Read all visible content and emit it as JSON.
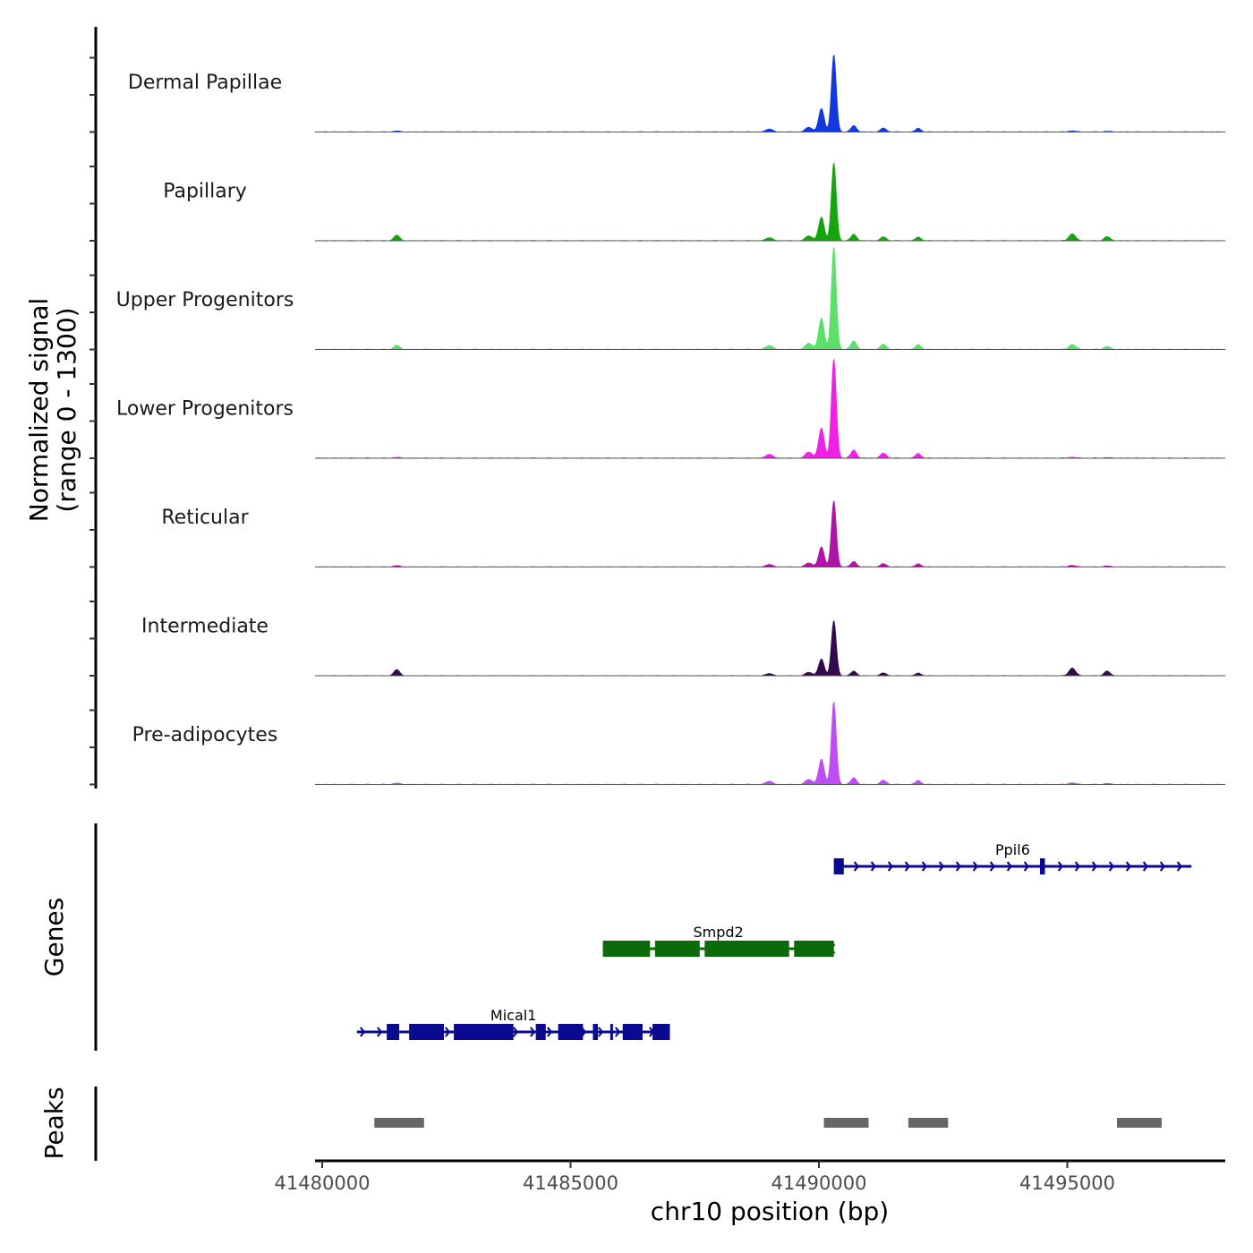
{
  "chart_data": {
    "type": "area",
    "title": "",
    "chromosome": "chr10",
    "xlabel": "chr10 position (bp)",
    "ylabel_line1": "Normalized signal",
    "ylabel_line2": "(range 0 - 1300)",
    "xlim": [
      41480000,
      41498000
    ],
    "ylim": [
      0,
      1300
    ],
    "x_ticks": [
      41480000,
      41485000,
      41490000,
      41495000
    ],
    "x_tick_labels": [
      "41480000",
      "41485000",
      "41490000",
      "41495000"
    ],
    "peak_components": [
      {
        "center": 41490300,
        "width": 70,
        "height": 1
      },
      {
        "center": 41490050,
        "width": 80,
        "height": 0.3
      },
      {
        "center": 41489800,
        "width": 100,
        "height": 0.06
      },
      {
        "center": 41490700,
        "width": 80,
        "height": 0.08
      },
      {
        "center": 41489000,
        "width": 90,
        "height": 0.04
      },
      {
        "center": 41491300,
        "width": 80,
        "height": 0.05
      },
      {
        "center": 41492000,
        "width": 70,
        "height": 0.05
      },
      {
        "center": 41481500,
        "width": 80,
        "height": 0.04
      },
      {
        "center": 41495100,
        "width": 90,
        "height": 0.05
      },
      {
        "center": 41495800,
        "width": 80,
        "height": 0.03
      }
    ],
    "series": [
      {
        "name": "Dermal Papillae",
        "color": "#1239E0",
        "max_signal": 980,
        "secondary_scale": 0.15
      },
      {
        "name": "Papillary",
        "color": "#16A50F",
        "max_signal": 990,
        "secondary_scale": 0.9
      },
      {
        "name": "Upper Progenitors",
        "color": "#5BE06A",
        "max_signal": 1300,
        "secondary_scale": 0.5
      },
      {
        "name": "Lower Progenitors",
        "color": "#F020E6",
        "max_signal": 1260,
        "secondary_scale": 0.1
      },
      {
        "name": "Reticular",
        "color": "#AE15A6",
        "max_signal": 840,
        "secondary_scale": 0.25
      },
      {
        "name": "Intermediate",
        "color": "#33094F",
        "max_signal": 700,
        "secondary_scale": 1.4
      },
      {
        "name": "Pre-adipocytes",
        "color": "#BE4DF5",
        "max_signal": 1050,
        "secondary_scale": 0.2
      }
    ],
    "genes": [
      {
        "name": "Ppil6",
        "start": 41490300,
        "end": 41497500,
        "strand": "+",
        "color": "#0A0A90",
        "exons": [
          [
            41490300,
            41490500
          ],
          [
            41494450,
            41494550
          ]
        ]
      },
      {
        "name": "Smpd2",
        "start": 41485650,
        "end": 41490300,
        "strand": "-",
        "color": "#0B6B0B",
        "exons": [
          [
            41485650,
            41486600
          ],
          [
            41486700,
            41487600
          ],
          [
            41487700,
            41489400
          ],
          [
            41489500,
            41490300
          ]
        ]
      },
      {
        "name": "Mical1",
        "start": 41480700,
        "end": 41487000,
        "strand": "+",
        "color": "#0A0A90",
        "exons": [
          [
            41481300,
            41481550
          ],
          [
            41481750,
            41482450
          ],
          [
            41482650,
            41483850
          ],
          [
            41484300,
            41484500
          ],
          [
            41484750,
            41485250
          ],
          [
            41485450,
            41485550
          ],
          [
            41485800,
            41485850
          ],
          [
            41486050,
            41486450
          ],
          [
            41486650,
            41487000
          ]
        ]
      }
    ],
    "gene_track_label": "Genes",
    "peak_track_label": "Peaks",
    "peaks": [
      {
        "start": 41481050,
        "end": 41482050,
        "color": "#666666"
      },
      {
        "start": 41490100,
        "end": 41491000,
        "color": "#666666"
      },
      {
        "start": 41491800,
        "end": 41492600,
        "color": "#666666"
      },
      {
        "start": 41496000,
        "end": 41496900,
        "color": "#666666"
      }
    ]
  }
}
